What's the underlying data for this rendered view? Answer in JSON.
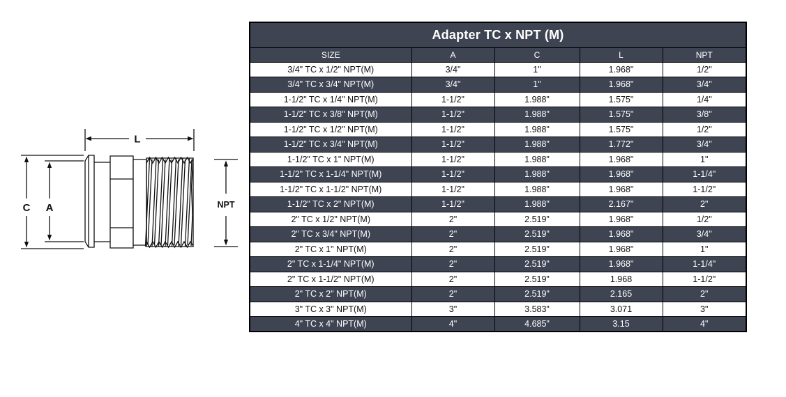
{
  "title": "Adapter TC x NPT (M)",
  "diagram": {
    "labels": {
      "length": "L",
      "clamp_od": "C",
      "tube_id": "A",
      "thread": "NPT"
    }
  },
  "table": {
    "columns": [
      "SIZE",
      "A",
      "C",
      "L",
      "NPT"
    ],
    "rows": [
      [
        "3/4\" TC x 1/2\" NPT(M)",
        "3/4\"",
        "1\"",
        "1.968\"",
        "1/2\""
      ],
      [
        "3/4\" TC x 3/4\" NPT(M)",
        "3/4\"",
        "1\"",
        "1.968\"",
        "3/4\""
      ],
      [
        "1-1/2\" TC x 1/4\" NPT(M)",
        "1-1/2\"",
        "1.988\"",
        "1.575\"",
        "1/4\""
      ],
      [
        "1-1/2\" TC x 3/8\" NPT(M)",
        "1-1/2\"",
        "1.988\"",
        "1.575\"",
        "3/8\""
      ],
      [
        "1-1/2\" TC x 1/2\" NPT(M)",
        "1-1/2\"",
        "1.988\"",
        "1.575\"",
        "1/2\""
      ],
      [
        "1-1/2\" TC x 3/4\" NPT(M)",
        "1-1/2\"",
        "1.988\"",
        "1.772\"",
        "3/4\""
      ],
      [
        "1-1/2\" TC x 1\" NPT(M)",
        "1-1/2\"",
        "1.988\"",
        "1.968\"",
        "1\""
      ],
      [
        "1-1/2\" TC x 1-1/4\" NPT(M)",
        "1-1/2\"",
        "1.988\"",
        "1.968\"",
        "1-1/4\""
      ],
      [
        "1-1/2\" TC x 1-1/2\" NPT(M)",
        "1-1/2\"",
        "1.988\"",
        "1.968\"",
        "1-1/2\""
      ],
      [
        "1-1/2\" TC x 2\" NPT(M)",
        "1-1/2\"",
        "1.988\"",
        "2.167\"",
        "2\""
      ],
      [
        "2\" TC x 1/2\" NPT(M)",
        "2\"",
        "2.519\"",
        "1.968\"",
        "1/2\""
      ],
      [
        "2\" TC x 3/4\" NPT(M)",
        "2\"",
        "2.519\"",
        "1.968\"",
        "3/4\""
      ],
      [
        "2\" TC x 1\" NPT(M)",
        "2\"",
        "2.519\"",
        "1.968\"",
        "1\""
      ],
      [
        "2\" TC x 1-1/4\" NPT(M)",
        "2\"",
        "2.519\"",
        "1.968\"",
        "1-1/4\""
      ],
      [
        "2\" TC x 1-1/2\" NPT(M)",
        "2\"",
        "2.519\"",
        "1.968",
        "1-1/2\""
      ],
      [
        "2\" TC x 2\" NPT(M)",
        "2\"",
        "2.519\"",
        "2.165",
        "2\""
      ],
      [
        "3\" TC x 3\" NPT(M)",
        "3\"",
        "3.583\"",
        "3.071",
        "3\""
      ],
      [
        "4\" TC x 4\" NPT(M)",
        "4\"",
        "4.685\"",
        "3.15",
        "4\""
      ]
    ]
  },
  "colors": {
    "dark_bg": "#3f4453",
    "row_bg": "#ffffff",
    "border": "#000000",
    "dark_text": "#ffffff",
    "light_text": "#111111"
  }
}
